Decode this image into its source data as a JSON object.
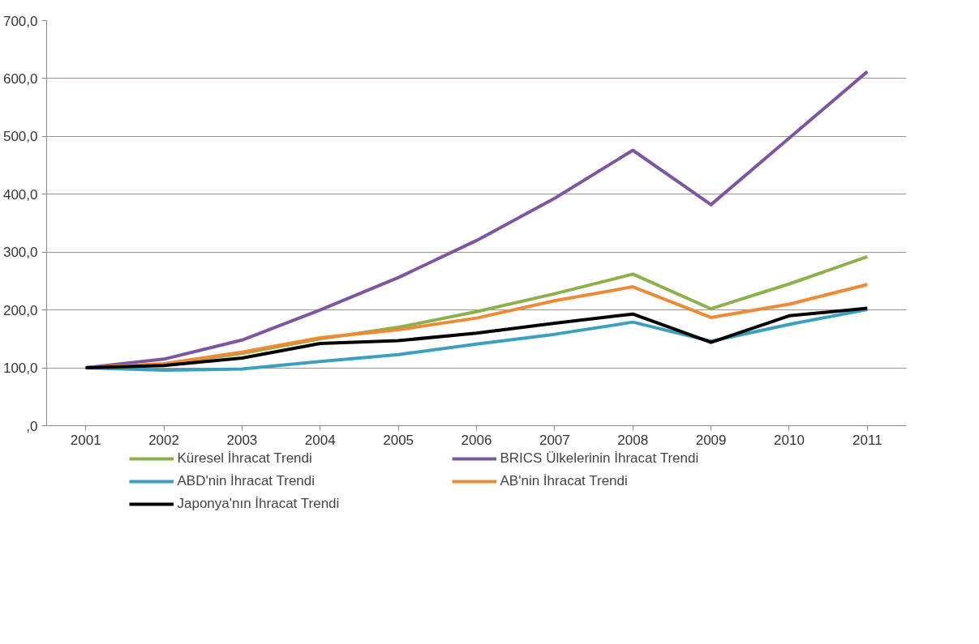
{
  "chart_data": {
    "type": "line",
    "categories": [
      "2001",
      "2002",
      "2003",
      "2004",
      "2005",
      "2006",
      "2007",
      "2008",
      "2009",
      "2010",
      "2011"
    ],
    "series": [
      {
        "name": "Küresel İhracat Trendi",
        "color": "#8cb04a",
        "values": [
          100,
          106,
          125,
          150,
          170,
          197,
          228,
          262,
          202,
          245,
          292
        ]
      },
      {
        "name": "BRICS Ülkelerinin İhracat Trendi",
        "color": "#7a57a0",
        "values": [
          100,
          115,
          148,
          200,
          256,
          320,
          393,
          476,
          382,
          497,
          612
        ]
      },
      {
        "name": "ABD'nin İhracat Trendi",
        "color": "#3ba0c0",
        "values": [
          100,
          96,
          98,
          111,
          123,
          141,
          158,
          179,
          146,
          175,
          201
        ]
      },
      {
        "name": "AB'nin İhracat Trendi",
        "color": "#ec8a35",
        "values": [
          100,
          107,
          127,
          152,
          166,
          186,
          216,
          240,
          187,
          210,
          244
        ]
      },
      {
        "name": "Japonya'nın İhracat Trendi",
        "color": "#000000",
        "values": [
          100,
          104,
          117,
          142,
          147,
          160,
          177,
          193,
          144,
          190,
          203
        ]
      }
    ],
    "ylim": [
      0,
      700
    ],
    "yticks": [
      {
        "value": 0,
        "label": ",0"
      },
      {
        "value": 100,
        "label": "100,0"
      },
      {
        "value": 200,
        "label": "200,0"
      },
      {
        "value": 300,
        "label": "300,0"
      },
      {
        "value": 400,
        "label": "400,0"
      },
      {
        "value": 500,
        "label": "500,0"
      },
      {
        "value": 600,
        "label": "600,0"
      },
      {
        "value": 700,
        "label": "700,0"
      }
    ],
    "grid": "y",
    "legend": "bottom",
    "marker": "none",
    "line_style": "solid"
  }
}
